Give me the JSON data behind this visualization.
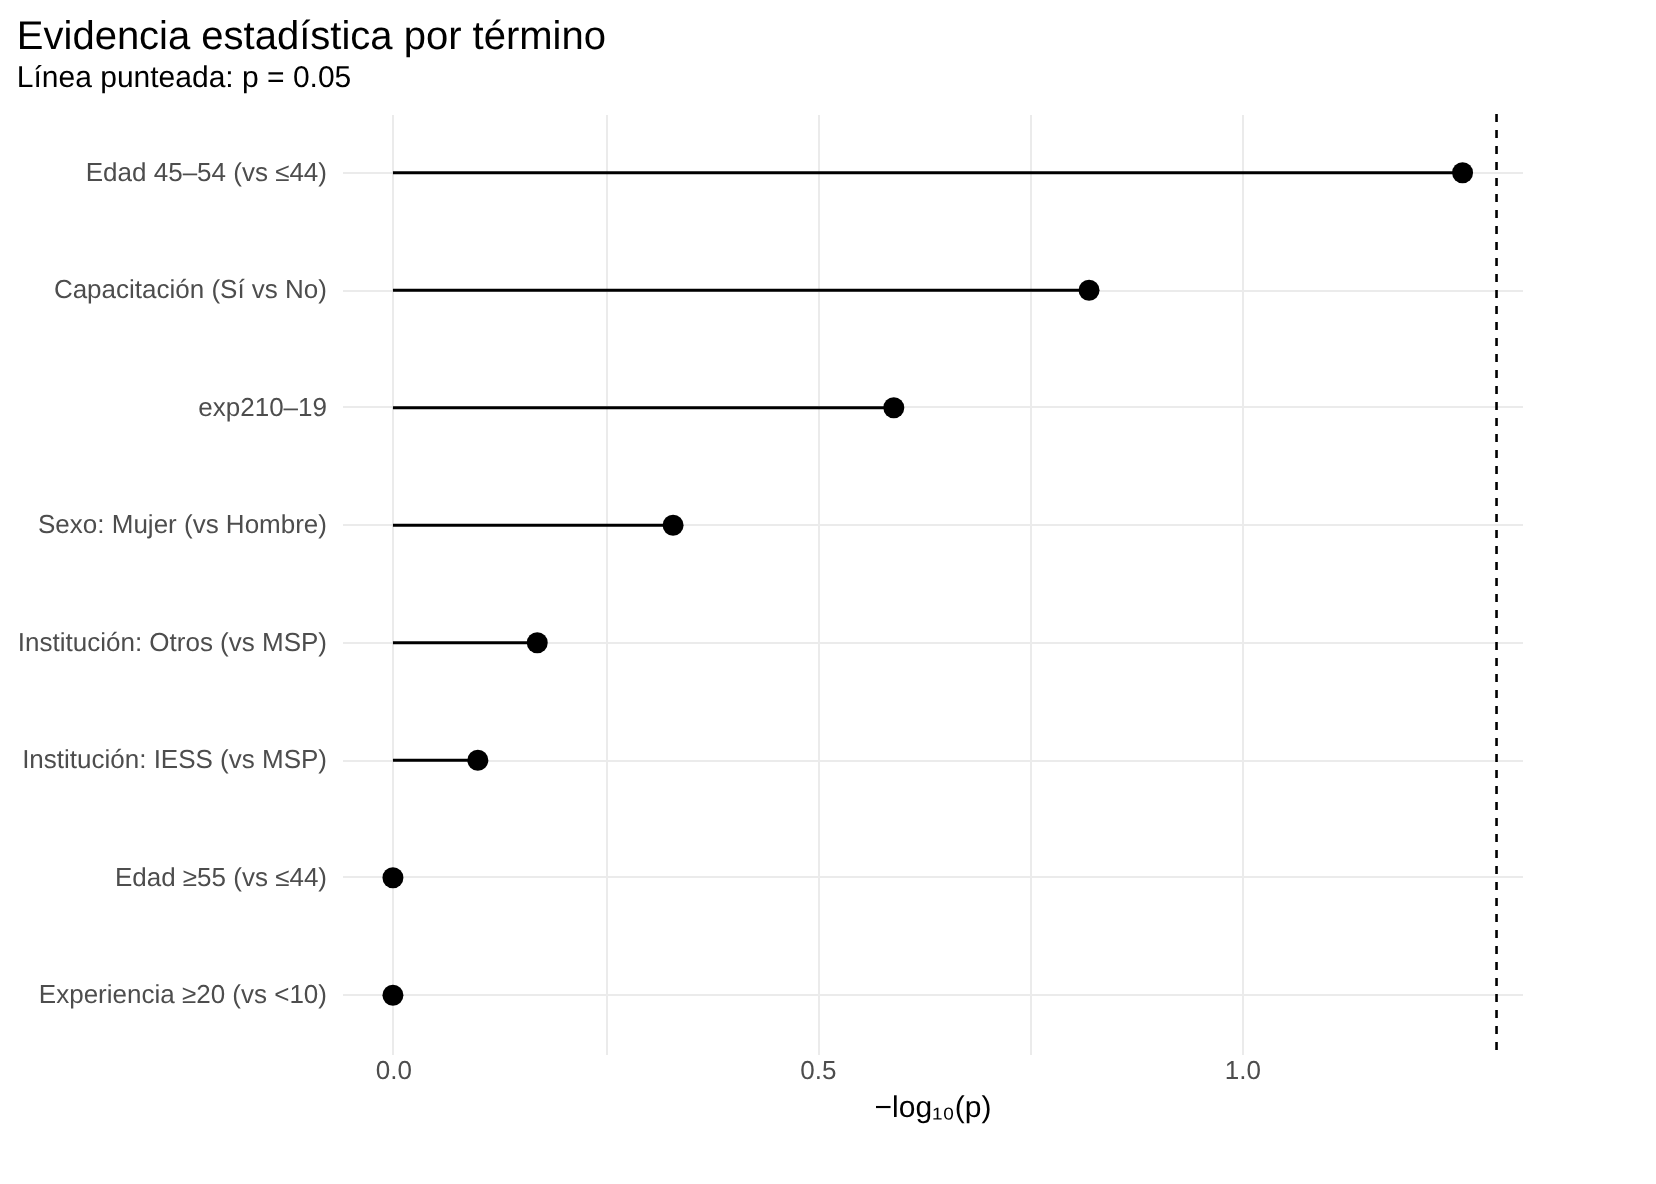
{
  "chart_data": {
    "type": "lollipop",
    "orientation": "horizontal",
    "title": "Evidencia estadística por término",
    "subtitle": "Línea punteada: p = 0.05",
    "xlabel": "−log₁₀(p)",
    "categories": [
      "Edad 45–54 (vs ≤44)",
      "Capacitación (Sí vs No)",
      "exp210–19",
      "Sexo: Mujer (vs Hombre)",
      "Institución: Otros (vs MSP)",
      "Institución: IESS (vs MSP)",
      "Edad ≥55 (vs ≤44)",
      "Experiencia ≥20 (vs <10)"
    ],
    "values": [
      1.26,
      0.82,
      0.59,
      0.33,
      0.17,
      0.1,
      0,
      0
    ],
    "color": "#000000",
    "marker": "circle",
    "line_style": "solid",
    "grid": true,
    "xlim": [
      -0.06,
      1.33
    ],
    "xticks": [
      {
        "value": 0,
        "label": "0.0"
      },
      {
        "value": 0.25,
        "label": null
      },
      0.5,
      {
        "value": 0.75,
        "label": null
      },
      {
        "value": 1,
        "label": "1.0"
      }
    ],
    "ref_lines": [
      {
        "axis": "x",
        "value": 1.3,
        "line_style": "dashed",
        "color": "#000000"
      }
    ]
  }
}
